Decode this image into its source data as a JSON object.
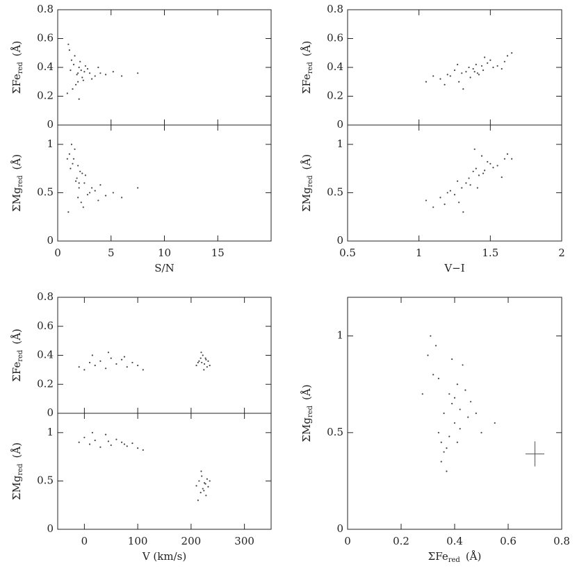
{
  "chart_data": [
    {
      "type": "scatter",
      "ylabel": {
        "text": "ΣFe",
        "sub": "red",
        "unit": "(Å)"
      },
      "color": "#444",
      "xlim": [
        0,
        20
      ],
      "ylim": [
        0,
        0.8
      ],
      "yticks": [
        0,
        0.2,
        0.4,
        0.6,
        0.8
      ],
      "x": [
        1.2,
        1.5,
        1.8,
        2.0,
        2.3,
        1.6,
        1.9,
        2.5,
        3.0,
        1.4,
        2.1,
        2.8,
        3.5,
        4.0,
        1.1,
        1.7,
        2.2,
        2.6,
        3.2,
        4.5,
        5.2,
        6.0,
        1.3,
        1.9,
        2.4,
        0.9,
        1.0,
        2.0,
        3.8,
        7.5
      ],
      "y": [
        0.38,
        0.42,
        0.35,
        0.4,
        0.33,
        0.48,
        0.3,
        0.37,
        0.36,
        0.25,
        0.44,
        0.39,
        0.34,
        0.36,
        0.52,
        0.28,
        0.38,
        0.41,
        0.32,
        0.35,
        0.37,
        0.34,
        0.45,
        0.36,
        0.31,
        0.22,
        0.56,
        0.18,
        0.4,
        0.36
      ]
    },
    {
      "type": "scatter",
      "xlabel": "S/N",
      "ylabel": {
        "text": "ΣMg",
        "sub": "red",
        "unit": "(Å)"
      },
      "color": "#444",
      "xlim": [
        0,
        20
      ],
      "ylim": [
        0,
        1.2
      ],
      "xticks": [
        0,
        5,
        10,
        15
      ],
      "yticks": [
        0,
        0.5,
        1
      ],
      "x": [
        1.2,
        1.5,
        1.8,
        2.0,
        2.3,
        1.6,
        1.9,
        2.5,
        3.0,
        1.4,
        2.1,
        2.8,
        3.5,
        4.0,
        1.1,
        1.7,
        2.2,
        2.6,
        3.2,
        4.5,
        5.2,
        6.0,
        1.3,
        1.9,
        2.4,
        0.9,
        1.0,
        2.0,
        3.8,
        7.5
      ],
      "y": [
        0.75,
        0.85,
        0.65,
        0.55,
        0.7,
        0.95,
        0.45,
        0.6,
        0.5,
        0.8,
        0.72,
        0.48,
        0.52,
        0.58,
        0.9,
        0.62,
        0.4,
        0.68,
        0.55,
        0.47,
        0.5,
        0.45,
        1.0,
        0.78,
        0.35,
        0.85,
        0.3,
        0.6,
        0.42,
        0.55
      ]
    },
    {
      "type": "scatter",
      "ylabel": {
        "text": "ΣFe",
        "sub": "red",
        "unit": "(Å)"
      },
      "color": "#444",
      "xlim": [
        0.5,
        2
      ],
      "ylim": [
        0,
        0.8
      ],
      "yticks": [
        0,
        0.2,
        0.4,
        0.6,
        0.8
      ],
      "x": [
        1.15,
        1.2,
        1.25,
        1.3,
        1.35,
        1.4,
        1.45,
        1.5,
        1.55,
        1.6,
        1.28,
        1.33,
        1.38,
        1.42,
        1.48,
        1.52,
        1.18,
        1.22,
        1.36,
        1.44,
        1.62,
        1.05,
        1.1,
        1.27,
        1.39,
        1.46,
        1.58,
        1.65,
        1.31,
        1.41
      ],
      "y": [
        0.32,
        0.35,
        0.38,
        0.36,
        0.4,
        0.42,
        0.38,
        0.45,
        0.41,
        0.44,
        0.3,
        0.37,
        0.39,
        0.35,
        0.43,
        0.4,
        0.28,
        0.34,
        0.33,
        0.41,
        0.48,
        0.3,
        0.34,
        0.42,
        0.37,
        0.47,
        0.39,
        0.5,
        0.25,
        0.36
      ]
    },
    {
      "type": "scatter",
      "xlabel": "V−I",
      "ylabel": {
        "text": "ΣMg",
        "sub": "red",
        "unit": "(Å)"
      },
      "color": "#444",
      "xlim": [
        0.5,
        2
      ],
      "ylim": [
        0,
        1.2
      ],
      "xticks": [
        0.5,
        1,
        1.5,
        2
      ],
      "yticks": [
        0,
        0.5,
        1
      ],
      "x": [
        1.15,
        1.2,
        1.25,
        1.3,
        1.35,
        1.4,
        1.45,
        1.5,
        1.55,
        1.6,
        1.28,
        1.33,
        1.38,
        1.42,
        1.48,
        1.52,
        1.18,
        1.22,
        1.36,
        1.44,
        1.62,
        1.05,
        1.1,
        1.27,
        1.39,
        1.46,
        1.58,
        1.65,
        1.31,
        1.41
      ],
      "y": [
        0.45,
        0.5,
        0.48,
        0.55,
        0.65,
        0.75,
        0.7,
        0.8,
        0.78,
        0.85,
        0.4,
        0.6,
        0.72,
        0.68,
        0.82,
        0.76,
        0.38,
        0.52,
        0.58,
        0.88,
        0.9,
        0.42,
        0.35,
        0.62,
        0.95,
        0.73,
        0.66,
        0.85,
        0.3,
        0.55
      ]
    },
    {
      "type": "scatter",
      "ylabel": {
        "text": "ΣFe",
        "sub": "red",
        "unit": "(Å)"
      },
      "color": "#444",
      "xlim": [
        -50,
        350
      ],
      "ylim": [
        0,
        0.8
      ],
      "yticks": [
        0,
        0.2,
        0.4,
        0.6,
        0.8
      ],
      "x": [
        -10,
        0,
        10,
        20,
        30,
        40,
        50,
        60,
        70,
        80,
        90,
        100,
        110,
        15,
        45,
        75,
        210,
        215,
        218,
        220,
        222,
        225,
        228,
        230,
        232,
        219,
        224,
        227,
        213,
        235
      ],
      "y": [
        0.32,
        0.3,
        0.35,
        0.33,
        0.36,
        0.31,
        0.38,
        0.34,
        0.37,
        0.32,
        0.35,
        0.33,
        0.3,
        0.4,
        0.42,
        0.39,
        0.33,
        0.36,
        0.38,
        0.35,
        0.4,
        0.34,
        0.37,
        0.32,
        0.36,
        0.42,
        0.3,
        0.38,
        0.35,
        0.33
      ]
    },
    {
      "type": "scatter",
      "xlabel": "V (km/s)",
      "ylabel": {
        "text": "ΣMg",
        "sub": "red",
        "unit": "(Å)"
      },
      "color": "#444",
      "xlim": [
        -50,
        350
      ],
      "ylim": [
        0,
        1.2
      ],
      "xticks": [
        0,
        100,
        200,
        300
      ],
      "yticks": [
        0,
        0.5,
        1
      ],
      "x": [
        -10,
        0,
        10,
        20,
        30,
        40,
        50,
        60,
        70,
        80,
        90,
        100,
        110,
        15,
        45,
        75,
        210,
        215,
        218,
        220,
        222,
        225,
        228,
        230,
        232,
        219,
        224,
        227,
        213,
        235
      ],
      "y": [
        0.9,
        0.95,
        0.88,
        0.92,
        0.85,
        0.98,
        0.87,
        0.93,
        0.9,
        0.86,
        0.89,
        0.84,
        0.82,
        1.0,
        0.91,
        0.88,
        0.45,
        0.5,
        0.38,
        0.55,
        0.42,
        0.48,
        0.35,
        0.52,
        0.44,
        0.6,
        0.4,
        0.47,
        0.3,
        0.5
      ]
    },
    {
      "type": "scatter",
      "xlabel": {
        "text": "ΣFe",
        "sub": "red",
        "unit": "(Å)"
      },
      "ylabel": {
        "text": "ΣMg",
        "sub": "red",
        "unit": "(Å)"
      },
      "color": "#444",
      "xlim": [
        0,
        0.8
      ],
      "ylim": [
        0,
        1.2
      ],
      "xticks": [
        0,
        0.2,
        0.4,
        0.6,
        0.8
      ],
      "yticks": [
        0,
        0.5,
        1
      ],
      "x": [
        0.3,
        0.32,
        0.34,
        0.35,
        0.36,
        0.37,
        0.38,
        0.39,
        0.4,
        0.41,
        0.42,
        0.43,
        0.45,
        0.33,
        0.36,
        0.38,
        0.4,
        0.44,
        0.48,
        0.5,
        0.28,
        0.35,
        0.39,
        0.42,
        0.46,
        0.31,
        0.37,
        0.41,
        0.34,
        0.55
      ],
      "y": [
        0.9,
        0.8,
        0.5,
        0.45,
        0.6,
        0.42,
        0.7,
        0.65,
        0.55,
        0.75,
        0.62,
        0.85,
        0.58,
        0.95,
        0.4,
        0.48,
        0.68,
        0.72,
        0.6,
        0.5,
        0.7,
        0.35,
        0.88,
        0.52,
        0.66,
        1.0,
        0.3,
        0.45,
        0.78,
        0.55
      ],
      "error_bar": {
        "x": 0.7,
        "y": 0.39,
        "xerr": 0.035,
        "yerr": 0.065
      }
    }
  ]
}
